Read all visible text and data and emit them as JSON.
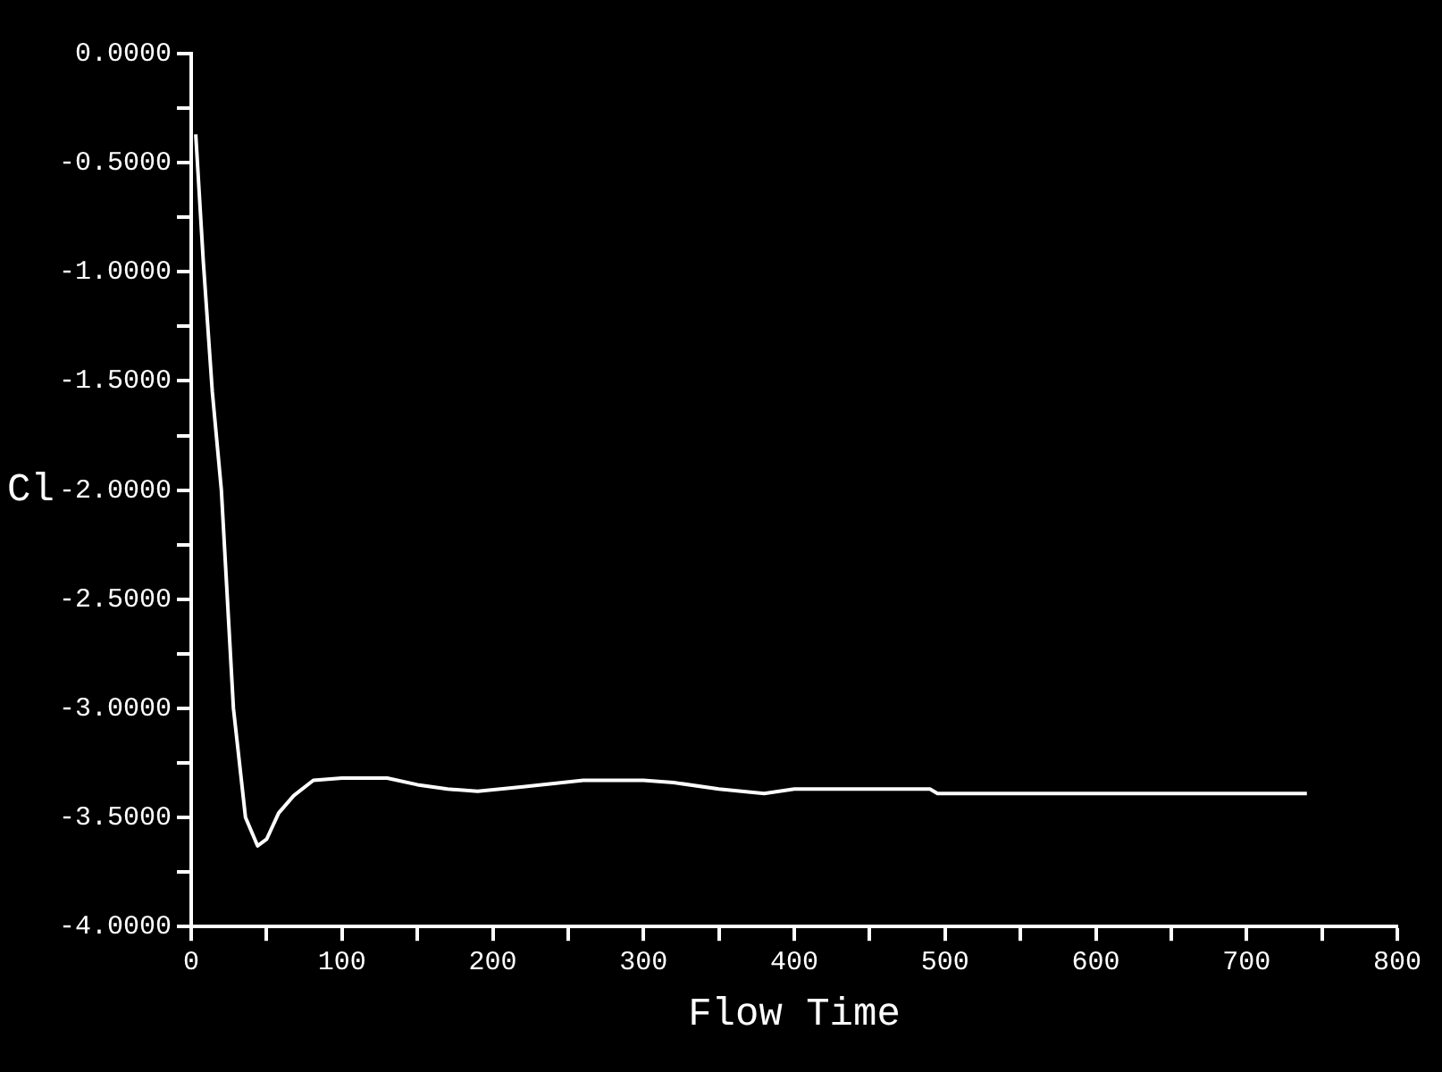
{
  "chart_data": {
    "type": "line",
    "xlabel": "Flow Time",
    "ylabel": "Cl",
    "x": [
      3,
      8,
      14,
      20,
      28,
      36,
      44,
      50,
      58,
      68,
      81,
      100,
      130,
      150,
      170,
      190,
      220,
      260,
      300,
      320,
      350,
      380,
      400,
      450,
      490,
      495,
      600,
      740
    ],
    "series": [
      {
        "color": "#ffffff",
        "values": [
          -0.37,
          -0.95,
          -1.55,
          -2.0,
          -3.0,
          -3.5,
          -3.63,
          -3.6,
          -3.48,
          -3.4,
          -3.33,
          -3.32,
          -3.32,
          -3.35,
          -3.37,
          -3.38,
          -3.36,
          -3.33,
          -3.33,
          -3.34,
          -3.37,
          -3.39,
          -3.37,
          -3.37,
          -3.37,
          -3.39,
          -3.39,
          -3.39
        ]
      }
    ],
    "xlim": [
      0,
      800
    ],
    "xticks": [
      0,
      {
        "value": 50,
        "label": null
      },
      100,
      {
        "value": 150,
        "label": null
      },
      200,
      {
        "value": 250,
        "label": null
      },
      300,
      {
        "value": 350,
        "label": null
      },
      400,
      {
        "value": 450,
        "label": null
      },
      500,
      {
        "value": 550,
        "label": null
      },
      600,
      {
        "value": 650,
        "label": null
      },
      700,
      {
        "value": 750,
        "label": null
      },
      800
    ],
    "ylim": [
      -4,
      0
    ],
    "yticks": [
      {
        "value": 0,
        "label": "0.0000"
      },
      {
        "value": -0.25,
        "label": null
      },
      {
        "value": -0.5,
        "label": "-0.5000"
      },
      {
        "value": -0.75,
        "label": null
      },
      {
        "value": -1,
        "label": "-1.0000"
      },
      {
        "value": -1.25,
        "label": null
      },
      {
        "value": -1.5,
        "label": "-1.5000"
      },
      {
        "value": -1.75,
        "label": null
      },
      {
        "value": -2,
        "label": "-2.0000"
      },
      {
        "value": -2.25,
        "label": null
      },
      {
        "value": -2.5,
        "label": "-2.5000"
      },
      {
        "value": -2.75,
        "label": null
      },
      {
        "value": -3,
        "label": "-3.0000"
      },
      {
        "value": -3.25,
        "label": null
      },
      {
        "value": -3.5,
        "label": "-3.5000"
      },
      {
        "value": -3.75,
        "label": null
      },
      {
        "value": -4,
        "label": "-4.0000"
      }
    ],
    "grid": false,
    "legend": false,
    "marker": "none",
    "line_style": "solid"
  }
}
